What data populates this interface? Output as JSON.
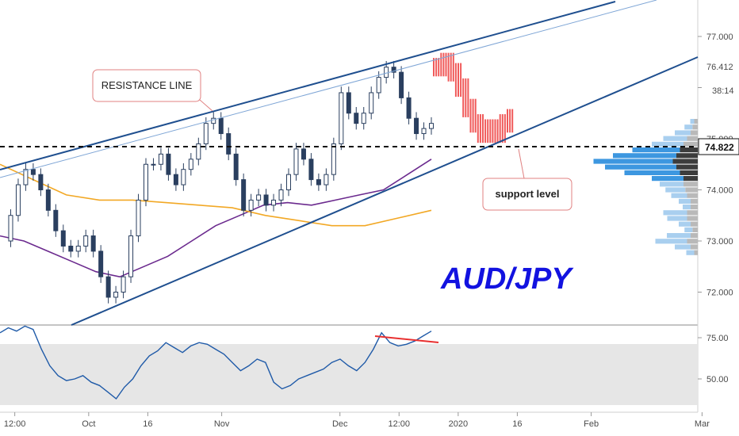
{
  "chart_data": [
    {
      "type": "line",
      "chart": "price",
      "title": "AUD/JPY",
      "y_ticks": [
        72.0,
        73.0,
        74.0,
        75.0,
        76.0,
        77.0
      ],
      "y_tick_labels": [
        "72.000",
        "73.000",
        "74.000",
        "75.000",
        "",
        "77.000"
      ],
      "ylim": [
        71.4,
        77.6
      ],
      "x_ticks": [
        {
          "label": "12:00",
          "x": 0.02
        },
        {
          "label": "Oct",
          "x": 0.12
        },
        {
          "label": "16",
          "x": 0.2
        },
        {
          "label": "Nov",
          "x": 0.3
        },
        {
          "label": "Dec",
          "x": 0.46
        },
        {
          "label": "12:00",
          "x": 0.54
        },
        {
          "label": "2020",
          "x": 0.62
        },
        {
          "label": "16",
          "x": 0.7
        },
        {
          "label": "Feb",
          "x": 0.8
        },
        {
          "label": "Mar",
          "x": 0.95
        }
      ],
      "close_series": [
        73.0,
        73.5,
        74.1,
        74.4,
        74.3,
        74.0,
        73.6,
        73.2,
        72.9,
        72.8,
        72.9,
        73.1,
        72.8,
        72.3,
        71.9,
        72.0,
        72.3,
        73.1,
        73.8,
        74.5,
        74.5,
        74.7,
        74.3,
        74.1,
        74.4,
        74.6,
        74.9,
        75.3,
        75.4,
        75.1,
        74.7,
        74.2,
        73.6,
        73.8,
        73.9,
        73.7,
        73.8,
        74.0,
        74.3,
        74.8,
        74.6,
        74.2,
        74.1,
        74.3,
        74.9,
        75.9,
        75.5,
        75.3,
        75.5,
        75.9,
        76.2,
        76.4,
        76.3,
        75.8,
        75.4,
        75.1,
        75.2,
        75.3
      ],
      "last_candle_index": 51,
      "forecast": [
        76.4,
        76.5,
        76.3,
        76.0,
        75.6,
        75.3,
        75.1,
        75.2,
        75.1,
        75.3,
        75.4
      ],
      "ma_purple": [
        73.1,
        73.0,
        72.8,
        72.6,
        72.4,
        72.3,
        72.5,
        72.7,
        73.0,
        73.3,
        73.5,
        73.7,
        73.75,
        73.7,
        73.8,
        73.9,
        74.0,
        74.3,
        74.6
      ],
      "ma_orange": [
        74.5,
        74.2,
        73.9,
        73.8,
        73.8,
        73.75,
        73.7,
        73.65,
        73.5,
        73.4,
        73.3,
        73.3,
        73.45,
        73.6
      ],
      "support_level": 74.822,
      "last_price": 76.412,
      "countdown": "38:14",
      "resistance_label": "RESISTANCE LINE",
      "support_label": "support level",
      "volume_profile_buy": [
        0.05,
        0.1,
        0.2,
        0.3,
        0.4,
        0.6,
        0.8,
        1.0,
        0.9,
        0.7,
        0.4,
        0.3,
        0.25,
        0.2,
        0.15,
        0.1,
        0.3,
        0.25,
        0.15,
        0.1,
        0.3,
        0.4,
        0.2,
        0.1
      ],
      "volume_profile_sell": [
        0.1,
        0.15,
        0.2,
        0.3,
        0.4,
        0.5,
        0.6,
        0.7,
        0.6,
        0.5,
        0.4,
        0.4,
        0.35,
        0.3,
        0.2,
        0.2,
        0.3,
        0.3,
        0.2,
        0.15,
        0.2,
        0.3,
        0.2,
        0.1
      ],
      "colors": {
        "candle": "#2a3f5f",
        "forecast": "#f05a5a",
        "trend": "#1f4f8f",
        "ma_purple": "#6b2a8e",
        "ma_orange": "#f2a825",
        "title": "#1212e0",
        "label_border": "#e08080"
      }
    },
    {
      "type": "line",
      "chart": "rsi",
      "y_ticks": [
        50.0,
        75.0
      ],
      "y_tick_labels": [
        "50.00",
        "75.00"
      ],
      "ylim": [
        30,
        88
      ],
      "band": [
        35,
        75
      ],
      "series": [
        78,
        81,
        79,
        82,
        80,
        68,
        58,
        52,
        49,
        50,
        52,
        48,
        46,
        42,
        38,
        45,
        50,
        58,
        64,
        67,
        72,
        69,
        66,
        70,
        72,
        71,
        68,
        65,
        60,
        55,
        58,
        62,
        60,
        48,
        44,
        46,
        50,
        52,
        54,
        56,
        60,
        62,
        58,
        55,
        60,
        68,
        78,
        72,
        70,
        71,
        73,
        76,
        79
      ],
      "divergence": [
        80,
        76
      ],
      "colors": {
        "line": "#1f5aa8",
        "band": "#e6e6e6",
        "divergence": "#e83030"
      }
    }
  ]
}
